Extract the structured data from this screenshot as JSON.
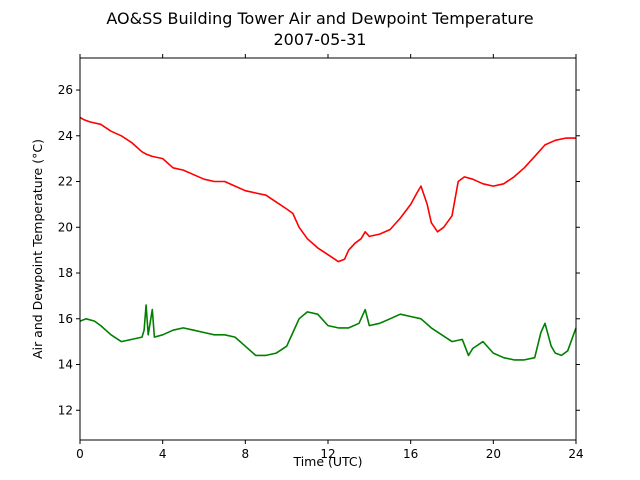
{
  "chart_data": {
    "type": "line",
    "title": "AO&SS Building Tower Air and Dewpoint Temperature",
    "subtitle": "2007-05-31",
    "xlabel": "Time (UTC)",
    "ylabel": "Air and Dewpoint Temperature (°C)",
    "xlim": [
      0,
      24
    ],
    "ylim": [
      10.7,
      27.4
    ],
    "xticks": [
      0,
      4,
      8,
      12,
      16,
      20,
      24
    ],
    "yticks": [
      12,
      14,
      16,
      18,
      20,
      22,
      24,
      26
    ],
    "grid": false,
    "legend": "none",
    "series": [
      {
        "color": "#ff0000",
        "x": [
          0,
          0.2,
          0.5,
          1.0,
          1.5,
          2.0,
          2.5,
          3.0,
          3.2,
          3.5,
          4.0,
          4.5,
          5.0,
          5.5,
          6.0,
          6.5,
          7.0,
          7.5,
          8.0,
          8.5,
          9.0,
          9.5,
          10.0,
          10.3,
          10.6,
          11.0,
          11.5,
          12.0,
          12.5,
          12.8,
          13.0,
          13.3,
          13.6,
          13.8,
          14.0,
          14.5,
          15.0,
          15.5,
          16.0,
          16.3,
          16.5,
          16.8,
          17.0,
          17.3,
          17.6,
          18.0,
          18.3,
          18.6,
          19.0,
          19.5,
          20.0,
          20.5,
          21.0,
          21.5,
          22.0,
          22.5,
          23.0,
          23.5,
          24.0
        ],
        "values": [
          24.8,
          24.7,
          24.6,
          24.5,
          24.2,
          24.0,
          23.7,
          23.3,
          23.2,
          23.1,
          23.0,
          22.6,
          22.5,
          22.3,
          22.1,
          22.0,
          22.0,
          21.8,
          21.6,
          21.5,
          21.4,
          21.1,
          20.8,
          20.6,
          20.0,
          19.5,
          19.1,
          18.8,
          18.5,
          18.6,
          19.0,
          19.3,
          19.5,
          19.8,
          19.6,
          19.7,
          19.9,
          20.4,
          21.0,
          21.5,
          21.8,
          21.0,
          20.2,
          19.8,
          20.0,
          20.5,
          22.0,
          22.2,
          22.1,
          21.9,
          21.8,
          21.9,
          22.2,
          22.6,
          23.1,
          23.6,
          23.8,
          23.9,
          23.9
        ]
      },
      {
        "color": "#008000",
        "x": [
          0,
          0.3,
          0.7,
          1.0,
          1.5,
          2.0,
          2.5,
          3.0,
          3.1,
          3.2,
          3.3,
          3.5,
          3.6,
          4.0,
          4.5,
          5.0,
          5.5,
          6.0,
          6.5,
          7.0,
          7.5,
          8.0,
          8.5,
          9.0,
          9.5,
          10.0,
          10.3,
          10.6,
          11.0,
          11.5,
          12.0,
          12.5,
          13.0,
          13.5,
          13.8,
          14.0,
          14.5,
          15.0,
          15.5,
          16.0,
          16.5,
          17.0,
          17.5,
          18.0,
          18.5,
          18.8,
          19.0,
          19.5,
          20.0,
          20.5,
          21.0,
          21.5,
          22.0,
          22.3,
          22.5,
          22.8,
          23.0,
          23.3,
          23.6,
          24.0
        ],
        "values": [
          15.9,
          16.0,
          15.9,
          15.7,
          15.3,
          15.0,
          15.1,
          15.2,
          15.5,
          16.6,
          15.3,
          16.4,
          15.2,
          15.3,
          15.5,
          15.6,
          15.5,
          15.4,
          15.3,
          15.3,
          15.2,
          14.8,
          14.4,
          14.4,
          14.5,
          14.8,
          15.4,
          16.0,
          16.3,
          16.2,
          15.7,
          15.6,
          15.6,
          15.8,
          16.4,
          15.7,
          15.8,
          16.0,
          16.2,
          16.1,
          16.0,
          15.6,
          15.3,
          15.0,
          15.1,
          14.4,
          14.7,
          15.0,
          14.5,
          14.3,
          14.2,
          14.2,
          14.3,
          15.4,
          15.8,
          14.8,
          14.5,
          14.4,
          14.6,
          15.6
        ]
      }
    ]
  }
}
